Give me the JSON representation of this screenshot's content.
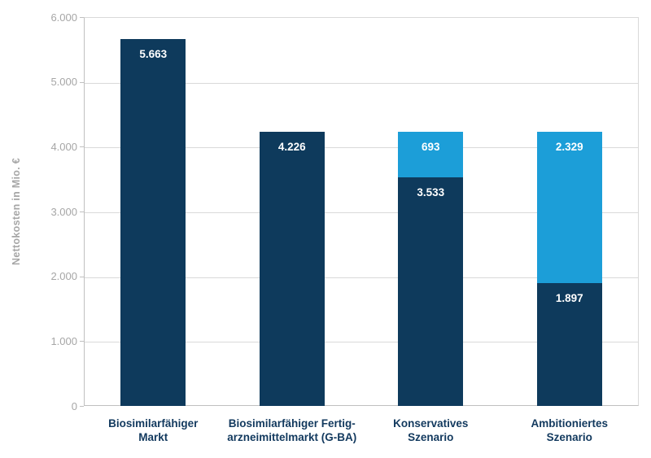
{
  "chart_data": {
    "type": "bar",
    "stacked": true,
    "title": "",
    "xlabel": "",
    "ylabel": "Nettokosten in Mio. €",
    "ylim": [
      0,
      6000
    ],
    "ytick_interval": 1000,
    "ytick_labels": [
      "0",
      "1.000",
      "2.000",
      "3.000",
      "4.000",
      "5.000",
      "6.000"
    ],
    "grid": true,
    "legend_position": "none",
    "series_colors": {
      "dark": "#0e3a5c",
      "light": "#1c9ed8"
    },
    "categories": [
      {
        "label_lines": [
          "Biosimilarfähiger",
          "Markt"
        ],
        "segments": [
          {
            "key": "dark",
            "value": 5663,
            "label": "5.663"
          }
        ]
      },
      {
        "label_lines": [
          "Biosimilarfähiger Fertig-",
          "arzneimittelmarkt (G-BA)"
        ],
        "segments": [
          {
            "key": "dark",
            "value": 4226,
            "label": "4.226"
          }
        ]
      },
      {
        "label_lines": [
          "Konservatives",
          "Szenario"
        ],
        "segments": [
          {
            "key": "dark",
            "value": 3533,
            "label": "3.533"
          },
          {
            "key": "light",
            "value": 693,
            "label": "693"
          }
        ]
      },
      {
        "label_lines": [
          "Ambitioniertes",
          "Szenario"
        ],
        "segments": [
          {
            "key": "dark",
            "value": 1897,
            "label": "1.897"
          },
          {
            "key": "light",
            "value": 2329,
            "label": "2.329"
          }
        ]
      }
    ]
  }
}
